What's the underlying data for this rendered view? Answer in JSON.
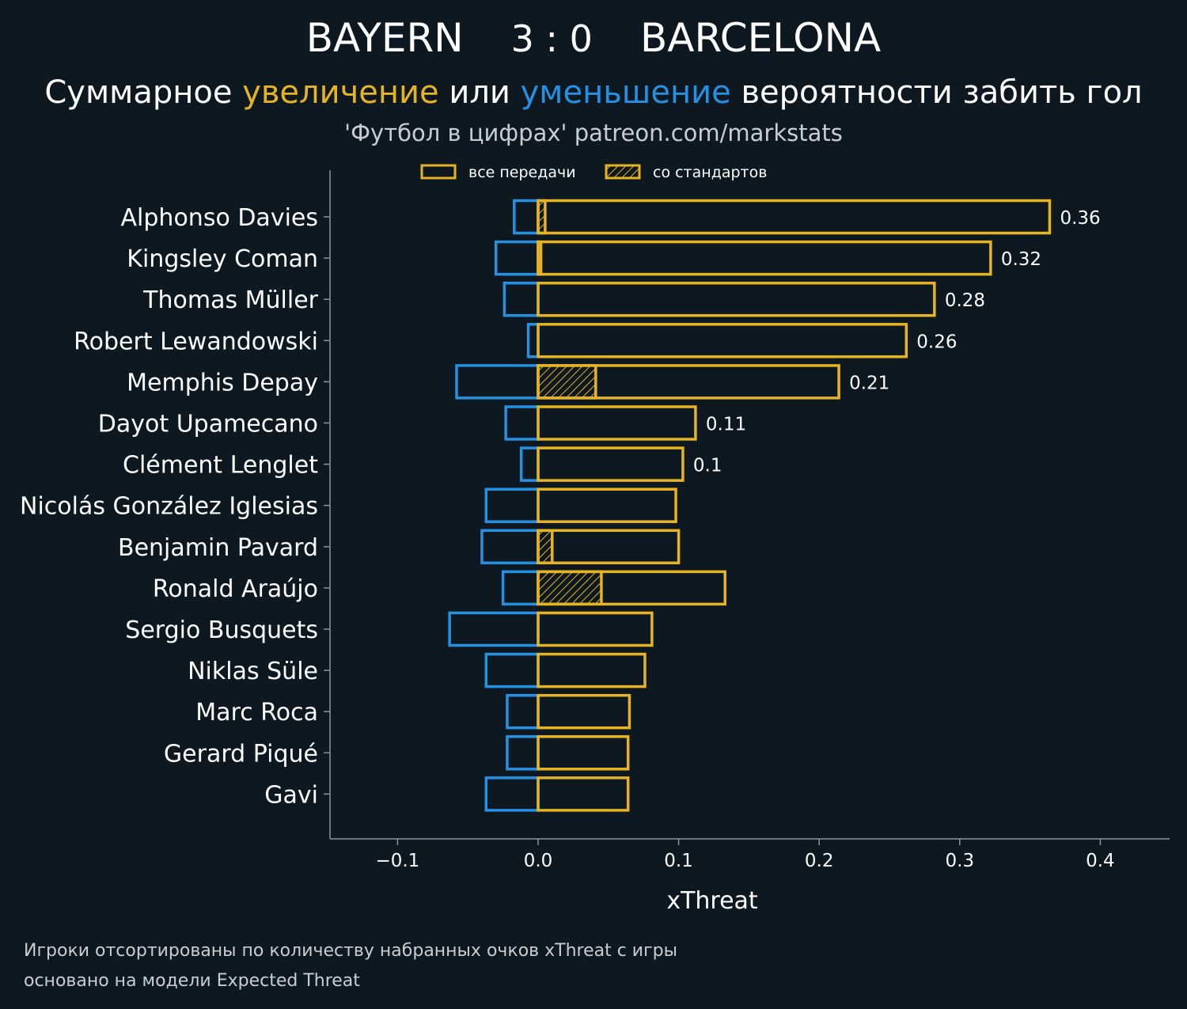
{
  "header": {
    "team_home": "BAYERN",
    "score": "3 : 0",
    "team_away": "BARCELONA",
    "subtitle_part1": "Суммарное ",
    "subtitle_increase": "увеличение",
    "subtitle_part2": " или ",
    "subtitle_decrease": "уменьшение",
    "subtitle_part3": " вероятности забить гол",
    "credit": "'Футбол в цифрах' patreon.com/markstats"
  },
  "footnotes": [
    "Игроки отсортированы по количеству набранных очков xThreat с игры",
    "основано на модели Expected Threat"
  ],
  "colors": {
    "background": "#0e1821",
    "increase": "#e6b323",
    "decrease": "#2591e3",
    "axis": "#8a949c"
  },
  "chart_data": {
    "type": "bar",
    "orientation": "horizontal",
    "xlabel": "xThreat",
    "xlim": [
      -0.15,
      0.45
    ],
    "xticks": [
      -0.1,
      0.0,
      0.1,
      0.2,
      0.3,
      0.4
    ],
    "xtick_labels": [
      "−0.1",
      "0.0",
      "0.1",
      "0.2",
      "0.3",
      "0.4"
    ],
    "legend": {
      "placement": "top-center",
      "entries": [
        "все передачи",
        "со стандартов"
      ]
    },
    "categories": [
      "Alphonso Davies",
      "Kingsley Coman",
      "Thomas Müller",
      "Robert Lewandowski",
      "Memphis Depay",
      "Dayot Upamecano",
      "Clément Lenglet",
      "Nicolás González Iglesias",
      "Benjamin Pavard",
      "Ronald Araújo",
      "Sergio Busquets",
      "Niklas Süle",
      "Marc Roca",
      "Gerard Piqué",
      "Gavi"
    ],
    "series": [
      {
        "name": "все передачи",
        "values": [
          0.364,
          0.322,
          0.282,
          0.262,
          0.214,
          0.112,
          0.103,
          0.098,
          0.1,
          0.133,
          0.081,
          0.076,
          0.065,
          0.064,
          0.064
        ]
      },
      {
        "name": "со стандартов",
        "values": [
          0.005,
          0.002,
          0.0,
          0.0,
          0.041,
          0.0,
          0.0,
          0.0,
          0.01,
          0.045,
          0.0,
          0.0,
          0.0,
          0.0,
          0.0
        ]
      },
      {
        "values": [
          -0.017,
          -0.03,
          -0.024,
          -0.007,
          -0.058,
          -0.023,
          -0.012,
          -0.037,
          -0.04,
          -0.025,
          -0.063,
          -0.037,
          -0.022,
          -0.022,
          -0.037
        ]
      }
    ],
    "data_labels": [
      "0.36",
      "0.32",
      "0.28",
      "0.26",
      "0.21",
      "0.11",
      "0.1",
      "",
      "",
      "",
      "",
      "",
      "",
      "",
      ""
    ]
  }
}
